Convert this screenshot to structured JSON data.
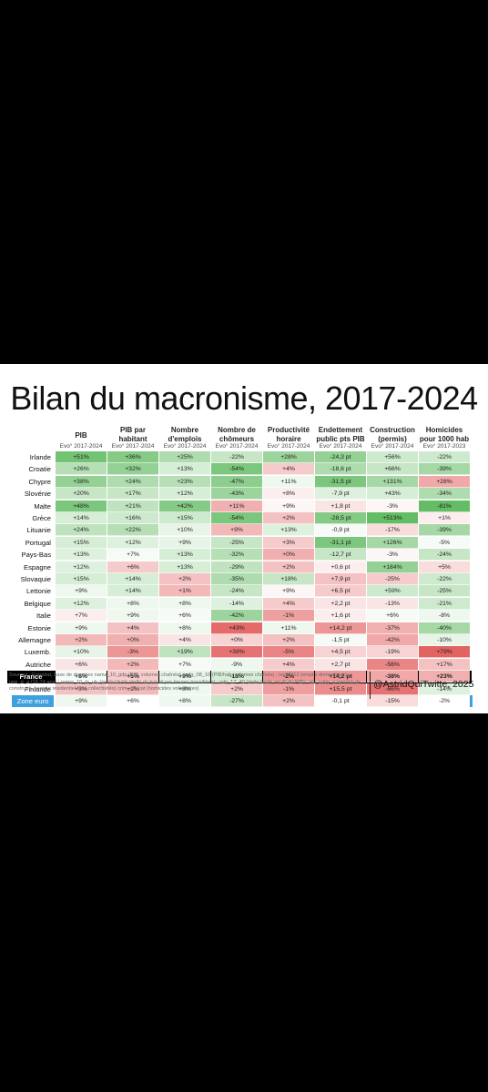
{
  "title": "Bilan du macronisme, 2017-2024",
  "columns": [
    {
      "label_lines": [
        "PIB"
      ],
      "sub": "Evo° 2017-2024"
    },
    {
      "label_lines": [
        "PIB par",
        "habitant"
      ],
      "sub": "Evo° 2017-2024"
    },
    {
      "label_lines": [
        "Nombre",
        "d'emplois"
      ],
      "sub": "Evo° 2017-2024"
    },
    {
      "label_lines": [
        "Nombre de",
        "chômeurs"
      ],
      "sub": "Evo° 2017-2024"
    },
    {
      "label_lines": [
        "Productivité",
        "horaire"
      ],
      "sub": "Evo° 2017-2024"
    },
    {
      "label_lines": [
        "Endettement",
        "public pts PIB"
      ],
      "sub": "Evo° 2017-2024"
    },
    {
      "label_lines": [
        "Construction",
        "(permis)"
      ],
      "sub": "Evo° 2017-2024"
    },
    {
      "label_lines": [
        "Homicides",
        "pour 1000 hab"
      ],
      "sub": "Evo° 2017-2023"
    }
  ],
  "chart_data": {
    "type": "table",
    "title": "Bilan du macronisme, 2017-2024",
    "column_headers": [
      "PIB",
      "PIB par habitant",
      "Nombre d'emplois",
      "Nombre de chômeurs",
      "Productivité horaire",
      "Endettement public pts PIB",
      "Construction (permis)",
      "Homicides pour 1000 hab"
    ],
    "colors": {
      "good": "#5cb85c",
      "bad": "#e05050",
      "neutral": "#ffffff",
      "zone_euro_label": "#3fa0e0",
      "france_band": "#000000"
    },
    "rows": [
      {
        "country": "Irlande",
        "values": [
          "+51%",
          "+36%",
          "+25%",
          "-22%",
          "+28%",
          "-24,3 pt",
          "+56%",
          "-22%"
        ],
        "scores": [
          0.85,
          0.75,
          0.5,
          0.35,
          0.6,
          0.65,
          0.3,
          0.3
        ]
      },
      {
        "country": "Croatie",
        "values": [
          "+26%",
          "+32%",
          "+13%",
          "-54%",
          "+4%",
          "-18,6 pt",
          "+66%",
          "-39%"
        ],
        "scores": [
          0.45,
          0.65,
          0.25,
          0.8,
          -0.3,
          0.5,
          0.35,
          0.55
        ]
      },
      {
        "country": "Chypre",
        "values": [
          "+38%",
          "+24%",
          "+23%",
          "-47%",
          "+11%",
          "-31,5 pt",
          "+131%",
          "+28%"
        ],
        "scores": [
          0.65,
          0.5,
          0.45,
          0.7,
          0.1,
          0.8,
          0.55,
          -0.5
        ]
      },
      {
        "country": "Slovénie",
        "values": [
          "+20%",
          "+17%",
          "+12%",
          "-43%",
          "+8%",
          "-7,9 pt",
          "+43%",
          "-34%"
        ],
        "scores": [
          0.35,
          0.35,
          0.25,
          0.6,
          -0.1,
          0.2,
          0.25,
          0.5
        ]
      },
      {
        "country": "Malte",
        "values": [
          "+48%",
          "+21%",
          "+42%",
          "+11%",
          "+9%",
          "+1,8 pt",
          "-3%",
          "-81%"
        ],
        "scores": [
          0.8,
          0.4,
          0.75,
          -0.45,
          -0.05,
          -0.15,
          -0.05,
          0.95
        ]
      },
      {
        "country": "Grèce",
        "values": [
          "+14%",
          "+16%",
          "+15%",
          "-54%",
          "+2%",
          "-28,5 pt",
          "+513%",
          "+1%"
        ],
        "scores": [
          0.25,
          0.3,
          0.3,
          0.8,
          -0.35,
          0.75,
          0.95,
          -0.1
        ]
      },
      {
        "country": "Lituanie",
        "values": [
          "+24%",
          "+22%",
          "+10%",
          "+9%",
          "+13%",
          "-0,9 pt",
          "-17%",
          "-39%"
        ],
        "scores": [
          0.4,
          0.45,
          0.15,
          -0.4,
          0.2,
          0.05,
          -0.2,
          0.55
        ]
      },
      {
        "country": "Portugal",
        "values": [
          "+15%",
          "+12%",
          "+9%",
          "-25%",
          "+3%",
          "-31,1 pt",
          "+126%",
          "-5%"
        ],
        "scores": [
          0.25,
          0.2,
          0.15,
          0.35,
          -0.3,
          0.8,
          0.55,
          0.05
        ]
      },
      {
        "country": "Pays-Bas",
        "values": [
          "+13%",
          "+7%",
          "+13%",
          "-32%",
          "+0%",
          "-12,7 pt",
          "-3%",
          "-24%"
        ],
        "scores": [
          0.2,
          0.05,
          0.25,
          0.45,
          -0.45,
          0.35,
          -0.05,
          0.35
        ]
      },
      {
        "country": "Espagne",
        "values": [
          "+12%",
          "+6%",
          "+13%",
          "-29%",
          "+2%",
          "+0,6 pt",
          "+184%",
          "+5%"
        ],
        "scores": [
          0.2,
          -0.3,
          0.25,
          0.4,
          -0.35,
          -0.1,
          0.65,
          -0.2
        ]
      },
      {
        "country": "Slovaquie",
        "values": [
          "+15%",
          "+14%",
          "+2%",
          "-35%",
          "+18%",
          "+7,9 pt",
          "-25%",
          "-22%"
        ],
        "scores": [
          0.25,
          0.25,
          -0.35,
          0.5,
          0.35,
          -0.35,
          -0.3,
          0.3
        ]
      },
      {
        "country": "Lettonie",
        "values": [
          "+9%",
          "+14%",
          "+1%",
          "-24%",
          "+9%",
          "+6,5 pt",
          "+59%",
          "-25%"
        ],
        "scores": [
          0.1,
          0.25,
          -0.4,
          0.35,
          -0.05,
          -0.3,
          0.3,
          0.35
        ]
      },
      {
        "country": "Belgique",
        "values": [
          "+12%",
          "+8%",
          "+8%",
          "-14%",
          "+4%",
          "+2,2 pt",
          "-13%",
          "-21%"
        ],
        "scores": [
          0.2,
          0.1,
          0.1,
          0.2,
          -0.3,
          -0.15,
          -0.15,
          0.3
        ]
      },
      {
        "country": "Italie",
        "values": [
          "+7%",
          "+9%",
          "+6%",
          "-42%",
          "-1%",
          "+1,6 pt",
          "+6%",
          "-8%"
        ],
        "scores": [
          -0.1,
          0.1,
          0.05,
          0.6,
          -0.55,
          -0.1,
          0.05,
          0.1
        ]
      },
      {
        "country": "Estonie",
        "values": [
          "+9%",
          "+4%",
          "+8%",
          "+43%",
          "+11%",
          "+14,2 pt",
          "-37%",
          "-40%"
        ],
        "scores": [
          0.1,
          -0.35,
          0.1,
          -0.85,
          0.1,
          -0.6,
          -0.45,
          0.55
        ]
      },
      {
        "country": "Allemagne",
        "values": [
          "+2%",
          "+0%",
          "+4%",
          "+0%",
          "+2%",
          "-1,5 pt",
          "-42%",
          "-10%"
        ],
        "scores": [
          -0.4,
          -0.45,
          -0.15,
          -0.25,
          -0.35,
          0.05,
          -0.5,
          0.15
        ]
      },
      {
        "country": "Luxemb.",
        "values": [
          "+10%",
          "-3%",
          "+19%",
          "+38%",
          "-5%",
          "+4,5 pt",
          "-19%",
          "+79%"
        ],
        "scores": [
          0.15,
          -0.6,
          0.4,
          -0.8,
          -0.7,
          -0.25,
          -0.25,
          -0.9
        ]
      },
      {
        "country": "Autriche",
        "values": [
          "+6%",
          "+2%",
          "+7%",
          "-9%",
          "+4%",
          "+2,7 pt",
          "-56%",
          "+17%"
        ],
        "scores": [
          -0.15,
          -0.4,
          0.05,
          0.1,
          -0.3,
          -0.15,
          -0.7,
          -0.35
        ]
      },
      {
        "country": "France",
        "values": [
          "+8%",
          "+5%",
          "+9%",
          "-18%",
          "-2%",
          "+14,2 pt",
          "-38%",
          "+23%"
        ],
        "scores": [
          0.05,
          -0.3,
          0.15,
          0.25,
          -0.6,
          -0.6,
          -0.5,
          -0.45
        ],
        "highlight": true
      },
      {
        "country": "Finlande",
        "values": [
          "+3%",
          "+1%",
          "+8%",
          "+2%",
          "-1%",
          "+15,5 pt",
          "-66%",
          "-14%"
        ],
        "scores": [
          -0.35,
          -0.4,
          0.1,
          -0.3,
          -0.55,
          -0.65,
          -0.8,
          0.2
        ]
      },
      {
        "country": "Zone euro",
        "values": [
          "+9%",
          "+6%",
          "+8%",
          "-27%",
          "+2%",
          "-0,1 pt",
          "-15%",
          "-2%"
        ],
        "scores": [
          0.1,
          0.0,
          0.1,
          0.35,
          -0.35,
          0.0,
          -0.2,
          0.0
        ],
        "zone": true
      }
    ]
  },
  "sources": "Sources : Eurostat, base de données nama_10_gdp (PIB, volumes chaînés) ; sdg_08_10 (PIB/hab, volumes chaînés) ; tec00112 (emploi domestique) ; une_rt_a (15-74 ans) ; nama_10_lp_ulc (productivité réelle du travail par heures travaillées) ; sdg_17_40 (dette brute, en % du PIB) ; sts_cobp_a (permis de construire, secteur résidentiel hors collectivités) crim_off_cat (homicides volontaires)",
  "signature": "@AstridQuiTwitte, 2025"
}
